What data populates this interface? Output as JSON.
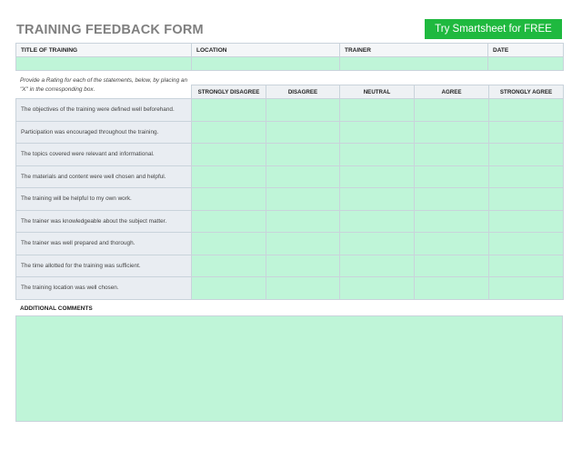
{
  "form": {
    "title": "TRAINING FEEDBACK FORM",
    "cta_label": "Try Smartsheet for FREE"
  },
  "info_headers": [
    "TITLE OF TRAINING",
    "LOCATION",
    "TRAINER",
    "DATE"
  ],
  "instructions": "Provide a Rating for each of the statements, below, by placing an \"X\" in the corresponding box.",
  "rating_headers": [
    "STRONGLY DISAGREE",
    "DISAGREE",
    "NEUTRAL",
    "AGREE",
    "STRONGLY AGREE"
  ],
  "statements": [
    "The objectives of the training were defined well beforehand.",
    "Participation was encouraged throughout the training.",
    "The topics covered were relevant and informational.",
    "The materials and content were well chosen and helpful.",
    "The training will be helpful to my own work.",
    "The trainer was knowledgeable about the subject matter.",
    "The trainer was well prepared and thorough.",
    "The time allotted for the training was sufficient.",
    "The training location was well chosen."
  ],
  "comments_label": "ADDITIONAL COMMENTS",
  "colors": {
    "cta": "#1fb93f",
    "input_fill": "#bff5d8",
    "title_gray": "#7f7f7f"
  }
}
